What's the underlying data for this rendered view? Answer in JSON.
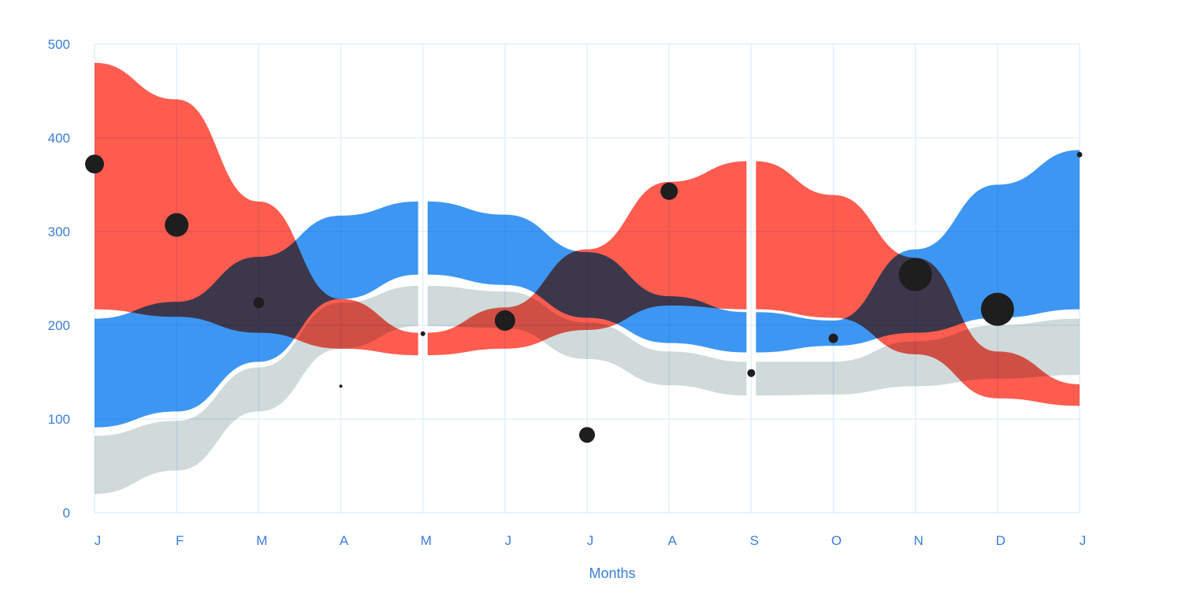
{
  "chart_data": {
    "type": "area",
    "subtype": "range-band-with-bubbles",
    "title": "",
    "xlabel": "Months",
    "ylabel": "",
    "ylim": [
      0,
      500
    ],
    "yticks": [
      "0",
      "100",
      "200",
      "300",
      "400",
      "500"
    ],
    "categories": [
      "J",
      "F",
      "M",
      "A",
      "M",
      "J",
      "J",
      "A",
      "S",
      "O",
      "N",
      "D",
      "J"
    ],
    "grid": true,
    "band_breaks_at_index": [
      4,
      8
    ],
    "series": [
      {
        "name": "grey band",
        "color": "#d0dada",
        "high": [
          82,
          98,
          155,
          224,
          242,
          236,
          203,
          172,
          161,
          161,
          183,
          200,
          207
        ],
        "low": [
          20,
          45,
          108,
          175,
          199,
          197,
          164,
          136,
          125,
          126,
          135,
          143,
          147
        ]
      },
      {
        "name": "blue band",
        "color": "#3d97f2",
        "high": [
          207,
          225,
          273,
          317,
          332,
          318,
          278,
          231,
          214,
          205,
          281,
          350,
          387
        ],
        "low": [
          91,
          108,
          161,
          228,
          254,
          243,
          208,
          181,
          171,
          178,
          192,
          208,
          217
        ]
      },
      {
        "name": "red band",
        "color": "#ff5c50",
        "high": [
          480,
          441,
          332,
          228,
          192,
          219,
          281,
          353,
          375,
          339,
          272,
          172,
          137
        ],
        "low": [
          217,
          209,
          192,
          175,
          168,
          175,
          195,
          221,
          217,
          208,
          169,
          122,
          114
        ]
      }
    ],
    "bubbles": {
      "color": "#1e1e1e",
      "values": [
        372,
        307,
        224,
        135,
        191,
        205,
        83,
        343,
        149,
        186,
        254,
        217,
        382
      ],
      "sizes": [
        12,
        15,
        7,
        2,
        3,
        13,
        10,
        11,
        5,
        6,
        21,
        21,
        3.5
      ]
    }
  }
}
